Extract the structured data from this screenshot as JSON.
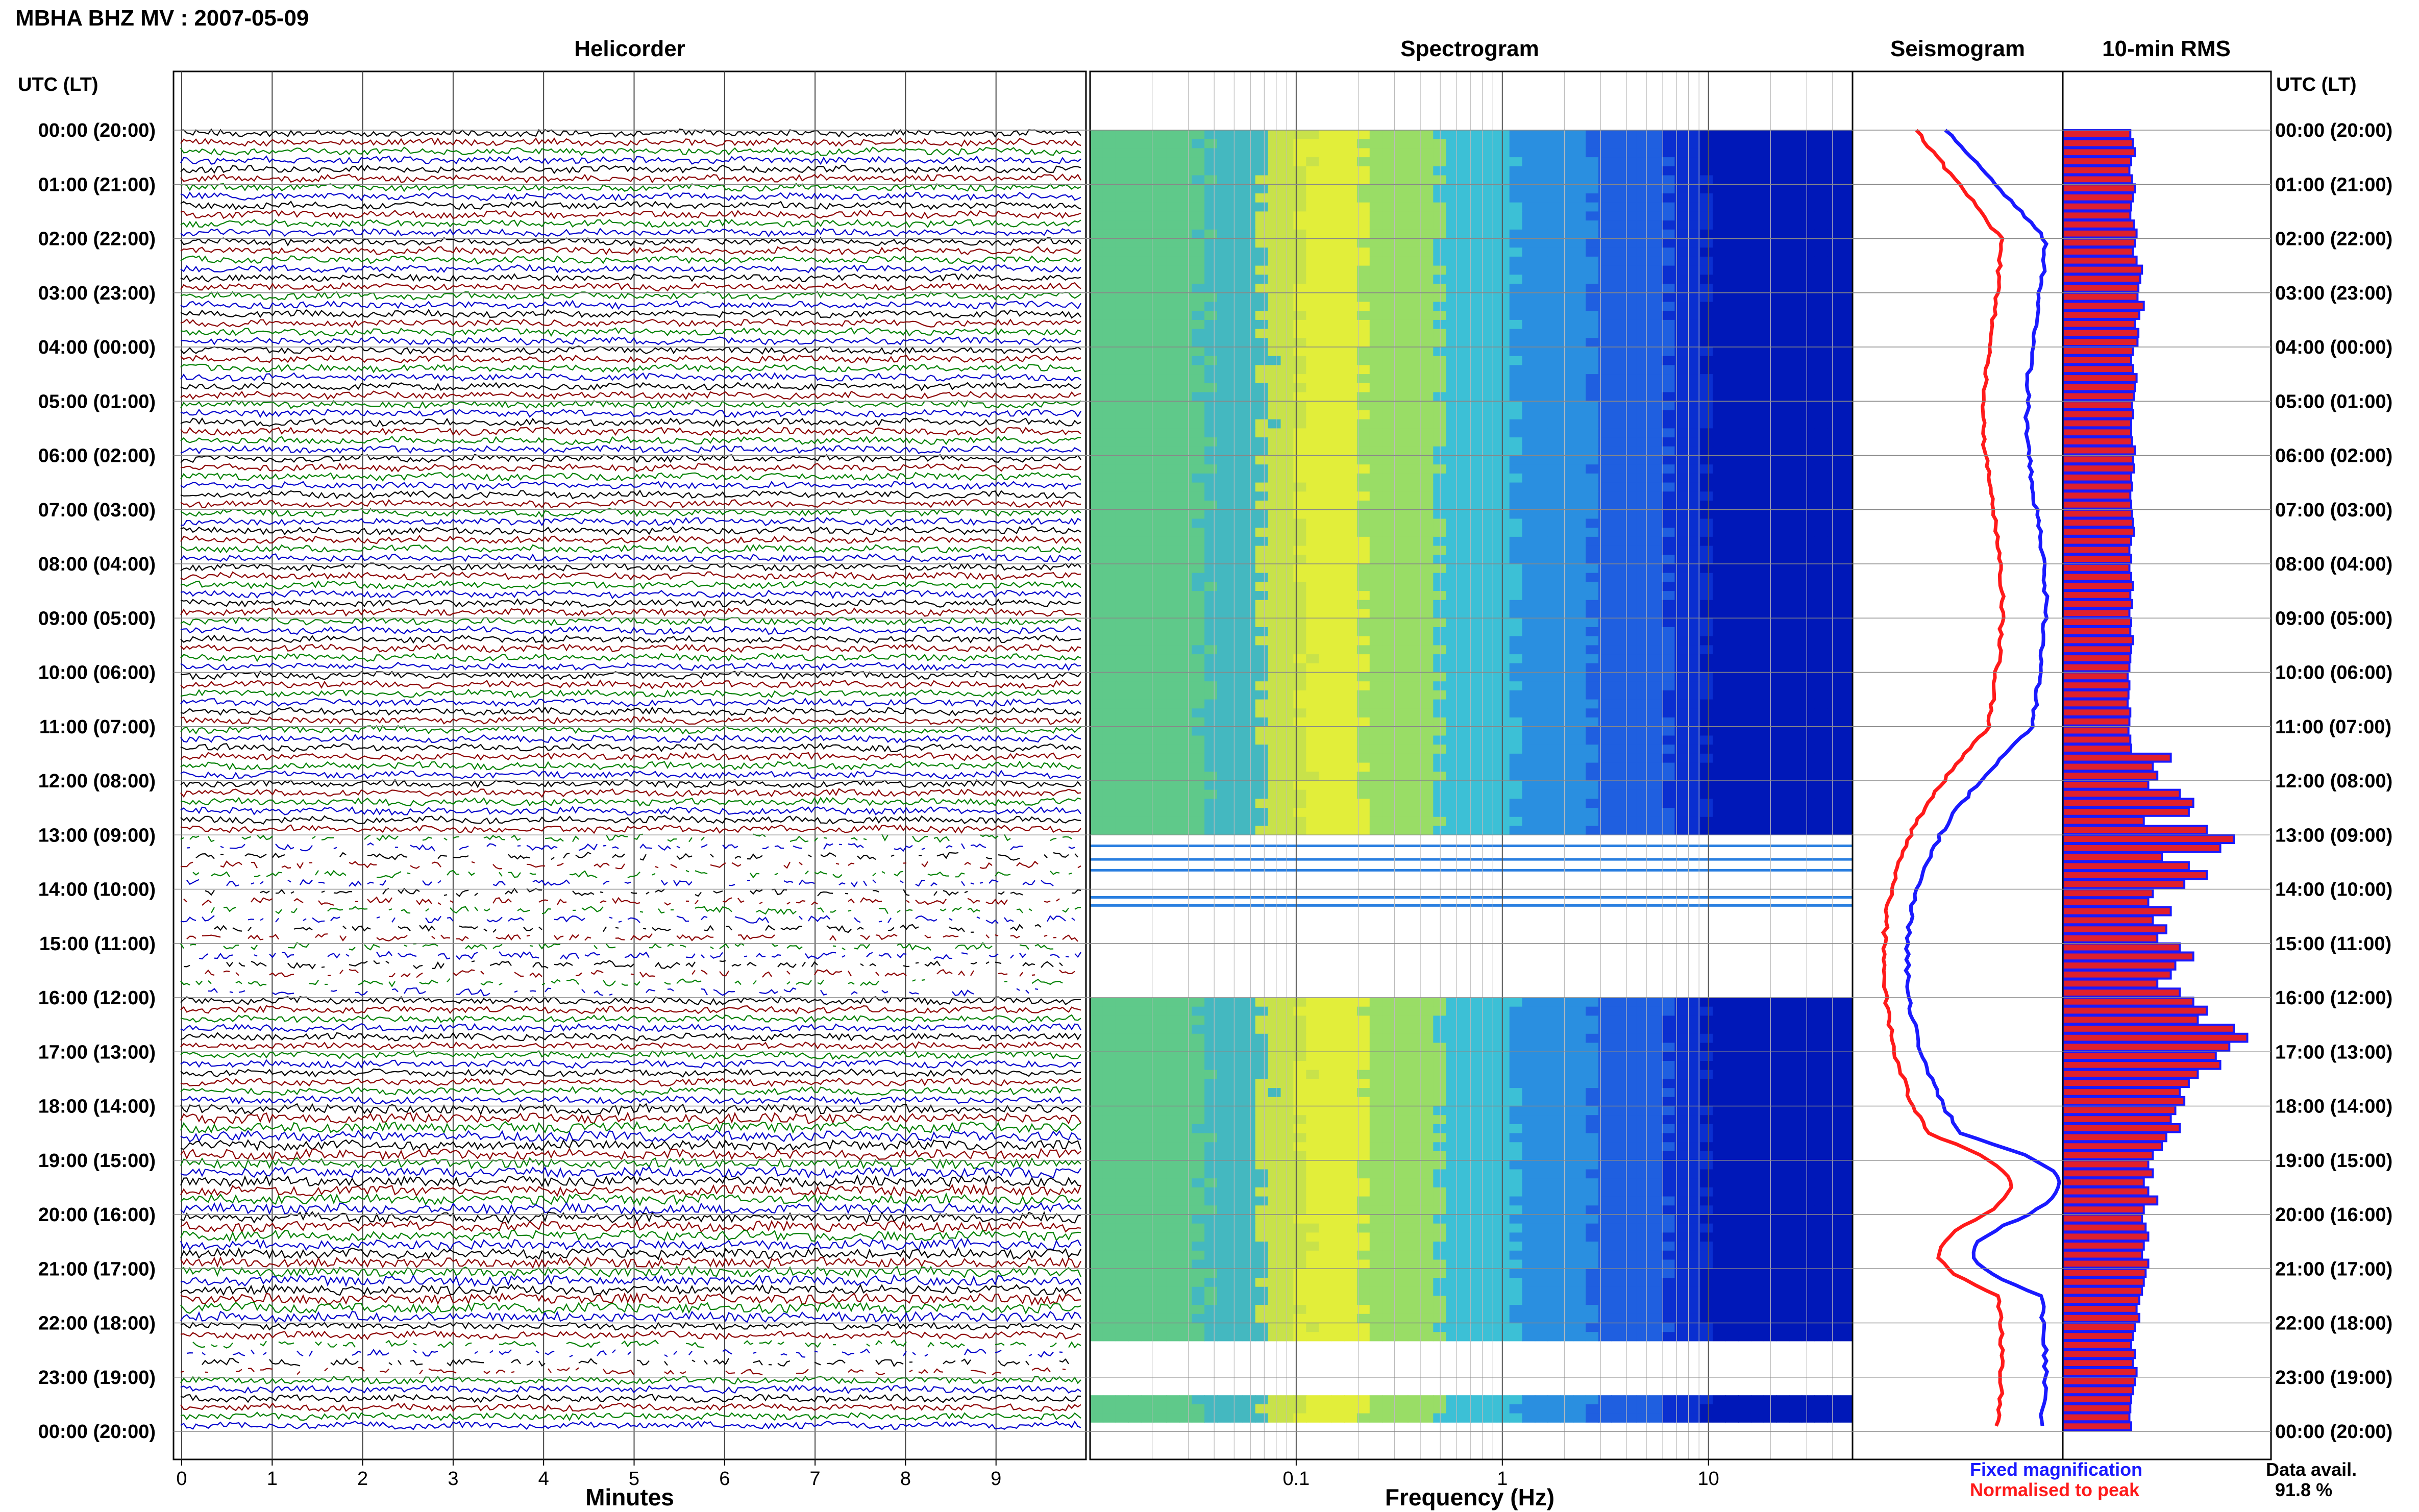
{
  "header": {
    "station_title": "MBHA BHZ MV : 2007-05-09",
    "utc_label_left": "UTC (LT)",
    "utc_label_right": "UTC (LT)"
  },
  "panels": {
    "helicorder": "Helicorder",
    "spectrogram": "Spectrogram",
    "seismogram": "Seismogram",
    "rms": "10-min RMS"
  },
  "axes": {
    "minutes_label": "Minutes",
    "frequency_label": "Frequency (Hz)",
    "minute_ticks": [
      "0",
      "1",
      "2",
      "3",
      "4",
      "5",
      "6",
      "7",
      "8",
      "9"
    ],
    "frequency_ticks": [
      "0.1",
      "1",
      "10"
    ]
  },
  "time_labels": [
    "00:00 (20:00)",
    "01:00 (21:00)",
    "02:00 (22:00)",
    "03:00 (23:00)",
    "04:00 (00:00)",
    "05:00 (01:00)",
    "06:00 (02:00)",
    "07:00 (03:00)",
    "08:00 (04:00)",
    "09:00 (05:00)",
    "10:00 (06:00)",
    "11:00 (07:00)",
    "12:00 (08:00)",
    "13:00 (09:00)",
    "14:00 (10:00)",
    "15:00 (11:00)",
    "16:00 (12:00)",
    "17:00 (13:00)",
    "18:00 (14:00)",
    "19:00 (15:00)",
    "20:00 (16:00)",
    "21:00 (17:00)",
    "22:00 (18:00)",
    "23:00 (19:00)",
    "00:00 (20:00)"
  ],
  "legend": {
    "fixed": "Fixed magnification",
    "fixed_color": "#1a1aff",
    "normalised": "Normalised to peak",
    "normalised_color": "#ff1a1a"
  },
  "data_availability": {
    "label": "Data avail.",
    "value": "91.8 %"
  },
  "colors": {
    "trace_cycle": [
      "#000000",
      "#8b0000",
      "#008000",
      "#0000cc"
    ],
    "rms_fill": "#e0202c",
    "rms_outline": "#1a1aff"
  },
  "chart_data": {
    "type": "heatmap",
    "helicorder": {
      "x_range_minutes": [
        0,
        10
      ],
      "lines_per_hour": 6,
      "gaps_utc_hours": [
        [
          13.0,
          16.0
        ],
        [
          22.3,
          23.0
        ]
      ]
    },
    "spectrogram": {
      "x_scale": "log",
      "x_range_hz": [
        0.01,
        50
      ],
      "data_gaps_utc_hours": [
        [
          13.0,
          16.0
        ],
        [
          22.33,
          23.33
        ],
        [
          23.7,
          24.0
        ]
      ]
    },
    "rms_10min": [
      0.75,
      0.78,
      0.8,
      0.76,
      0.74,
      0.77,
      0.8,
      0.78,
      0.76,
      0.75,
      0.79,
      0.82,
      0.8,
      0.78,
      0.82,
      0.88,
      0.86,
      0.84,
      0.83,
      0.9,
      0.85,
      0.8,
      0.84,
      0.83,
      0.78,
      0.76,
      0.78,
      0.82,
      0.8,
      0.79,
      0.77,
      0.78,
      0.76,
      0.76,
      0.77,
      0.8,
      0.78,
      0.79,
      0.76,
      0.77,
      0.75,
      0.76,
      0.77,
      0.78,
      0.79,
      0.76,
      0.74,
      0.76,
      0.74,
      0.76,
      0.78,
      0.75,
      0.77,
      0.74,
      0.76,
      0.75,
      0.78,
      0.76,
      0.75,
      0.74,
      0.72,
      0.74,
      0.73,
      0.72,
      0.75,
      0.74,
      0.73,
      0.75,
      0.76,
      1.2,
      1.0,
      1.05,
      0.95,
      1.3,
      1.45,
      1.4,
      0.9,
      1.6,
      1.9,
      1.75,
      1.1,
      1.4,
      1.6,
      1.35,
      1.0,
      0.95,
      1.2,
      1.0,
      1.15,
      1.05,
      1.3,
      1.45,
      1.25,
      1.2,
      1.05,
      1.3,
      1.45,
      1.6,
      1.5,
      1.9,
      2.05,
      1.85,
      1.7,
      1.75,
      1.5,
      1.4,
      1.3,
      1.35,
      1.25,
      1.2,
      1.3,
      1.15,
      1.1,
      1.0,
      0.95,
      1.0,
      0.9,
      0.95,
      1.05,
      0.9,
      0.88,
      0.92,
      0.95,
      0.9,
      0.88,
      0.95,
      0.92,
      0.9,
      0.88,
      0.85,
      0.82,
      0.85,
      0.8,
      0.78,
      0.76,
      0.8,
      0.78,
      0.82,
      0.8,
      0.78,
      0.76,
      0.75,
      0.74,
      0.76
    ]
  }
}
